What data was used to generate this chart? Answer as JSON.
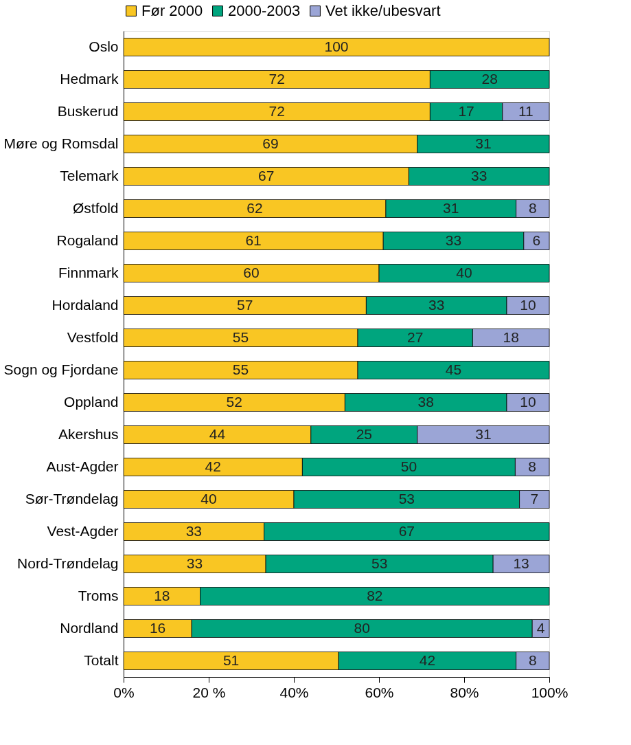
{
  "chart_data": {
    "type": "bar",
    "orientation": "horizontal",
    "stacked": true,
    "legend": "top",
    "grid": false,
    "categories": [
      "Oslo",
      "Hedmark",
      "Buskerud",
      "Møre og Romsdal",
      "Telemark",
      "Østfold",
      "Rogaland",
      "Finnmark",
      "Hordaland",
      "Vestfold",
      "Sogn og Fjordane",
      "Oppland",
      "Akershus",
      "Aust-Agder",
      "Sør-Trøndelag",
      "Vest-Agder",
      "Nord-Trøndelag",
      "Troms",
      "Nordland",
      "Totalt"
    ],
    "xlim": [
      0,
      100
    ],
    "xticks": [
      {
        "value": 0,
        "label": "0%"
      },
      {
        "value": 20,
        "label": "20 %"
      },
      {
        "value": 40,
        "label": "40%"
      },
      {
        "value": 60,
        "label": "60%"
      },
      {
        "value": 80,
        "label": "80%"
      },
      {
        "value": 100,
        "label": "100%"
      }
    ],
    "series": [
      {
        "name": "Før 2000",
        "color": "#f9c623",
        "values": [
          100,
          72,
          72,
          69,
          67,
          61.6,
          61,
          60,
          57,
          55,
          55,
          52,
          44,
          42,
          40,
          33,
          33.4,
          18,
          16,
          50.5
        ],
        "value_labels": [
          "100",
          "72",
          "72",
          "69",
          "67",
          "62",
          "61",
          "60",
          "57",
          "55",
          "55",
          "52",
          "44",
          "42",
          "40",
          "33",
          "33",
          "18",
          "16",
          "51"
        ]
      },
      {
        "name": "2000-2003",
        "color": "#00a57e",
        "values": [
          null,
          28,
          17,
          31,
          33,
          30.6,
          33,
          40,
          33,
          27,
          45,
          38,
          25,
          50,
          53,
          67,
          53.4,
          82,
          80,
          41.7
        ],
        "value_labels": [
          null,
          "28",
          "17",
          "31",
          "33",
          "31",
          "33",
          "40",
          "33",
          "27",
          "45",
          "38",
          "25",
          "50",
          "53",
          "67",
          "53",
          "82",
          "80",
          "42"
        ]
      },
      {
        "name": "Vet ikke/ubesvart",
        "color": "#9ba5d6",
        "values": [
          null,
          null,
          11,
          null,
          null,
          7.8,
          6,
          null,
          10,
          18,
          null,
          10,
          31,
          8,
          7,
          null,
          13.2,
          null,
          4,
          7.8
        ],
        "value_labels": [
          null,
          null,
          "11",
          null,
          null,
          "8",
          "6",
          null,
          "10",
          "18",
          null,
          "10",
          "31",
          "8",
          "7",
          null,
          "13",
          null,
          "4",
          "8"
        ]
      }
    ]
  }
}
